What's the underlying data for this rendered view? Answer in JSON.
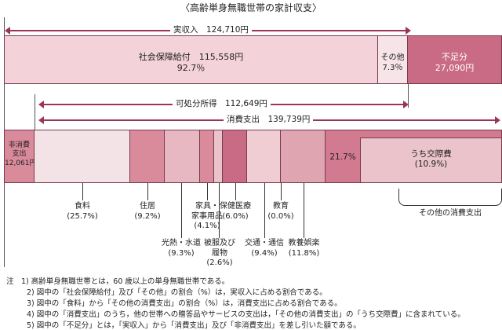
{
  "title": "〈高齢単身無職世帯の家計収支〉",
  "income": {
    "label": "実収入　124,710円",
    "social": "社会保障給付　115,558円",
    "social_pct": "92.7％",
    "other": "その他",
    "other_pct": "7.3％",
    "short": "不足分",
    "short_amt": "27,090円"
  },
  "disposable": "可処分所得　112,649円",
  "consumption": "消費支出　139,739円",
  "nonconsumption": [
    "非消費",
    "支出",
    "12,061円"
  ],
  "items": [
    {
      "name": "食料",
      "pct": "(25.7%)"
    },
    {
      "name": "住居",
      "pct": "(9.2%)"
    },
    {
      "name": "光熱・水道",
      "pct": "(9.3%)"
    },
    {
      "name": "家具・",
      "name2": "家事用品",
      "pct": "(4.1%)"
    },
    {
      "name": "被服及び",
      "name2": "履物",
      "pct": "(2.6%)"
    },
    {
      "name": "保健医療",
      "pct": "(6.0%)"
    },
    {
      "name": "交通・通信",
      "pct": "(9.4%)"
    },
    {
      "name": "教育",
      "pct": "(0.0%)"
    },
    {
      "name": "教養娯楽",
      "pct": "(11.8%)"
    }
  ],
  "other_consumption": {
    "pct": "21.7%",
    "sub": "うち交際費",
    "sub_pct": "(10.9%)",
    "label": "その他の消費支出"
  },
  "notes": [
    "注　1) 高齢単身無職世帯とは，60 歳以上の単身無職世帯である。",
    "2) 図中の「社会保障給付」及び「その他」の割合（%）は，実収入に占める割合である。",
    "3) 図中の「食料」から「その他の消費支出」の割合（%）は，消費支出に占める割合である。",
    "4) 図中の「消費支出」のうち，他の世帯への贈答品やサービスの支出は，「その他の消費支出」の「うち交際費」に含まれている。",
    "5) 図中の「不足分」とは，「実収入」から「消費支出」及び「非消費支出」を差し引いた額である。"
  ],
  "colors": {
    "arrow": "#9b3558",
    "social": "#f3d3d9",
    "short": "#c96b84"
  }
}
